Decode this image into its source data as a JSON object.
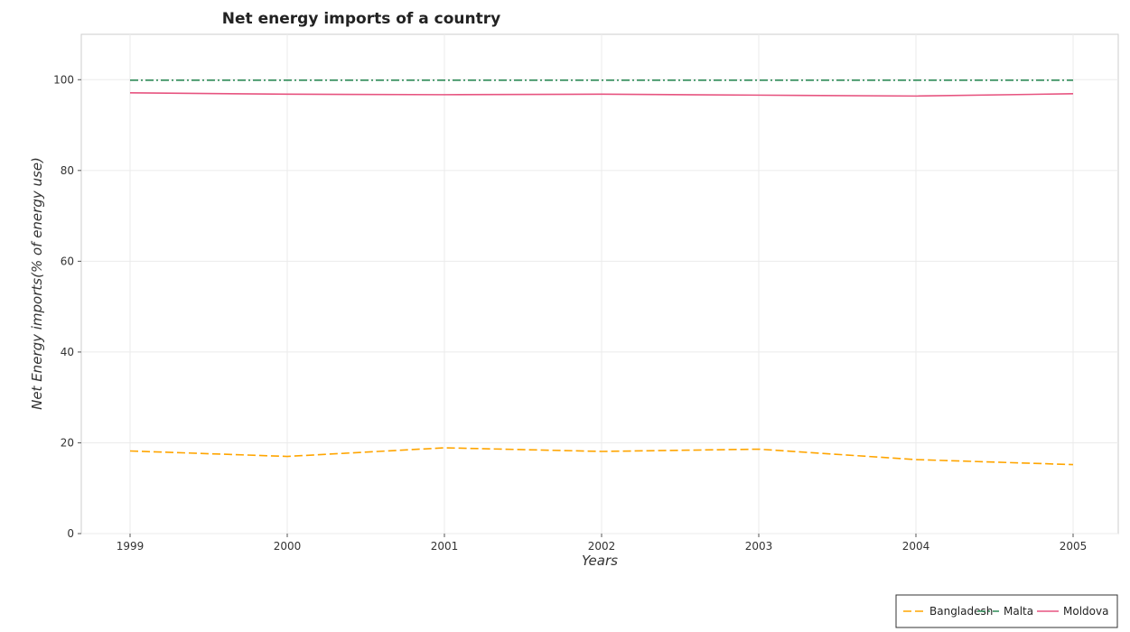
{
  "chart_data": {
    "type": "line",
    "title": "Net energy imports of a country",
    "xlabel": "Years",
    "ylabel": "Net Energy imports(% of energy use)",
    "x": [
      "1999",
      "2000",
      "2001",
      "2002",
      "2003",
      "2004",
      "2005"
    ],
    "ylim": [
      0,
      110
    ],
    "yticks": [
      "0",
      "20",
      "40",
      "60",
      "80",
      "100"
    ],
    "grid": true,
    "legend_position": "bottom-right",
    "series": [
      {
        "name": "Bangladesh",
        "color": "#ffa500",
        "dash": "dashed",
        "values": [
          18.2,
          17.0,
          18.9,
          18.1,
          18.6,
          16.3,
          15.2
        ]
      },
      {
        "name": "Malta",
        "color": "#2e8b57",
        "dash": "dashdot",
        "values": [
          99.9,
          99.9,
          99.9,
          99.9,
          99.9,
          99.9,
          99.9
        ]
      },
      {
        "name": "Moldova",
        "color": "#e75480",
        "dash": "solid",
        "values": [
          97.1,
          96.8,
          96.7,
          96.8,
          96.6,
          96.4,
          96.9
        ]
      }
    ]
  }
}
